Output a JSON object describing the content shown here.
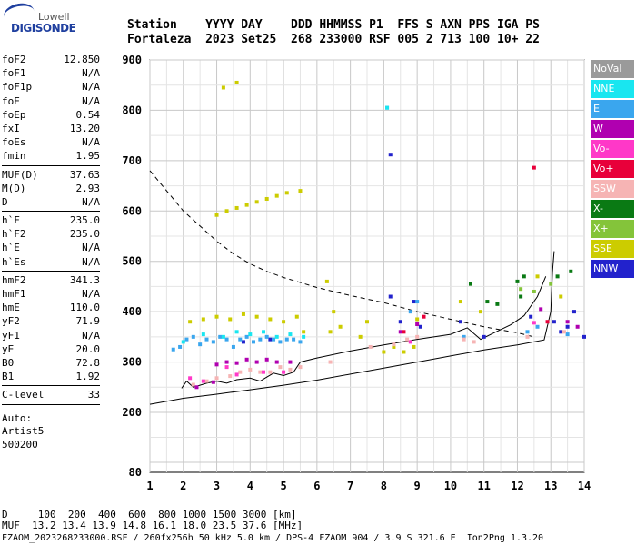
{
  "logo": {
    "brand": "Lowell",
    "product": "DIGISONDE"
  },
  "header": {
    "line1": "Station    YYYY DAY    DDD HHMMSS P1  FFS S AXN PPS IGA PS",
    "line2": "Fortaleza  2023 Set25  268 233000 RSF 005 2 713 100 10+ 22"
  },
  "params": [
    {
      "k": "foF2",
      "v": "12.850"
    },
    {
      "k": "foF1",
      "v": "N/A"
    },
    {
      "k": "foF1p",
      "v": "N/A"
    },
    {
      "k": "foE",
      "v": "N/A"
    },
    {
      "k": "foEp",
      "v": "0.54"
    },
    {
      "k": "fxI",
      "v": "13.20"
    },
    {
      "k": "foEs",
      "v": "N/A"
    },
    {
      "k": "fmin",
      "v": "1.95"
    },
    {
      "k": "MUF(D)",
      "v": "37.63"
    },
    {
      "k": "M(D)",
      "v": "2.93"
    },
    {
      "k": "D",
      "v": "N/A"
    },
    {
      "k": "h`F",
      "v": "235.0"
    },
    {
      "k": "h`F2",
      "v": "235.0"
    },
    {
      "k": "h`E",
      "v": "N/A"
    },
    {
      "k": "h`Es",
      "v": "N/A"
    },
    {
      "k": "hmF2",
      "v": "341.3"
    },
    {
      "k": "hmF1",
      "v": "N/A"
    },
    {
      "k": "hmE",
      "v": "110.0"
    },
    {
      "k": "yF2",
      "v": "71.9"
    },
    {
      "k": "yF1",
      "v": "N/A"
    },
    {
      "k": "yE",
      "v": "20.0"
    },
    {
      "k": "B0",
      "v": "72.8"
    },
    {
      "k": "B1",
      "v": "1.92"
    },
    {
      "k": "C-level",
      "v": "33"
    }
  ],
  "auto": {
    "line1": "Auto:",
    "line2": "Artist5",
    "line3": "500200"
  },
  "legend": [
    {
      "label": "NoVal",
      "color": "#9a9a9a"
    },
    {
      "label": "NNE",
      "color": "#19e6f0"
    },
    {
      "label": "E",
      "color": "#3aa6ee"
    },
    {
      "label": "W",
      "color": "#b000b0"
    },
    {
      "label": "Vo-",
      "color": "#ff38c8"
    },
    {
      "label": "Vo+",
      "color": "#e8003a"
    },
    {
      "label": "SSW",
      "color": "#f6b4b4"
    },
    {
      "label": "X-",
      "color": "#0a7a14"
    },
    {
      "label": "X+",
      "color": "#84c43a"
    },
    {
      "label": "SSE",
      "color": "#cccc00"
    },
    {
      "label": "NNW",
      "color": "#2222cc"
    }
  ],
  "bottom": {
    "line1": "D     100  200  400  600  800 1000 1500 3000 [km]",
    "line2": "MUF  13.2 13.4 13.9 14.8 16.1 18.0 23.5 37.6 [MHz]",
    "line3": "FZAOM_2023268233000.RSF / 260fx256h 50 kHz 5.0 km / DPS-4 FZAOM 904 / 3.9 S 321.6 E  Ion2Png 1.3.20"
  },
  "chart_data": {
    "type": "scatter",
    "title": "",
    "xlabel": "",
    "ylabel": "",
    "xlim": [
      1,
      14
    ],
    "ylim": [
      80,
      900
    ],
    "x_ticks": [
      1,
      2,
      3,
      4,
      5,
      6,
      7,
      8,
      9,
      10,
      11,
      12,
      13,
      14
    ],
    "y_ticks": [
      80,
      200,
      300,
      400,
      500,
      600,
      700,
      800,
      900
    ],
    "grid": true,
    "legend_position": "right",
    "series": [
      {
        "name": "NNW",
        "points": [
          [
            8.2,
            430
          ],
          [
            8.5,
            380
          ],
          [
            8.9,
            420
          ],
          [
            9.1,
            370
          ],
          [
            10.3,
            380
          ],
          [
            11.0,
            350
          ],
          [
            12.4,
            390
          ],
          [
            13.1,
            380
          ],
          [
            13.3,
            360
          ],
          [
            13.5,
            370
          ],
          [
            13.7,
            400
          ],
          [
            14.0,
            350
          ],
          [
            8.2,
            712
          ],
          [
            3.8,
            340
          ],
          [
            4.6,
            345
          ]
        ]
      },
      {
        "name": "E",
        "points": [
          [
            1.7,
            325
          ],
          [
            1.9,
            330
          ],
          [
            2.1,
            345
          ],
          [
            2.3,
            350
          ],
          [
            2.5,
            335
          ],
          [
            2.7,
            345
          ],
          [
            2.9,
            340
          ],
          [
            3.1,
            350
          ],
          [
            3.3,
            345
          ],
          [
            3.5,
            330
          ],
          [
            3.7,
            345
          ],
          [
            3.9,
            350
          ],
          [
            4.1,
            340
          ],
          [
            4.3,
            345
          ],
          [
            4.5,
            350
          ],
          [
            4.7,
            345
          ],
          [
            4.9,
            340
          ],
          [
            5.1,
            345
          ],
          [
            5.3,
            345
          ],
          [
            5.5,
            340
          ],
          [
            8.8,
            400
          ],
          [
            9.0,
            420
          ],
          [
            10.4,
            350
          ],
          [
            12.3,
            360
          ],
          [
            12.6,
            370
          ],
          [
            13.5,
            355
          ],
          [
            8.1,
            805
          ]
        ]
      },
      {
        "name": "NNE",
        "points": [
          [
            2.0,
            340
          ],
          [
            2.6,
            355
          ],
          [
            3.2,
            350
          ],
          [
            3.6,
            360
          ],
          [
            4.0,
            355
          ],
          [
            4.4,
            360
          ],
          [
            4.8,
            350
          ],
          [
            5.2,
            355
          ],
          [
            5.6,
            350
          ],
          [
            8.1,
            805
          ]
        ]
      },
      {
        "name": "SSE",
        "points": [
          [
            2.2,
            380
          ],
          [
            2.6,
            385
          ],
          [
            3.0,
            390
          ],
          [
            3.4,
            385
          ],
          [
            3.8,
            395
          ],
          [
            4.2,
            390
          ],
          [
            4.6,
            385
          ],
          [
            5.0,
            380
          ],
          [
            5.4,
            390
          ],
          [
            5.6,
            360
          ],
          [
            6.4,
            360
          ],
          [
            6.5,
            400
          ],
          [
            6.7,
            370
          ],
          [
            7.3,
            350
          ],
          [
            7.5,
            380
          ],
          [
            8.0,
            320
          ],
          [
            8.3,
            330
          ],
          [
            8.6,
            320
          ],
          [
            8.9,
            330
          ],
          [
            9.0,
            385
          ],
          [
            3.0,
            592
          ],
          [
            3.3,
            600
          ],
          [
            3.6,
            606
          ],
          [
            3.9,
            612
          ],
          [
            4.2,
            618
          ],
          [
            4.5,
            624
          ],
          [
            4.8,
            630
          ],
          [
            5.1,
            636
          ],
          [
            5.5,
            640
          ],
          [
            3.2,
            845
          ],
          [
            3.6,
            855
          ],
          [
            12.6,
            470
          ],
          [
            13.3,
            430
          ],
          [
            6.3,
            460
          ],
          [
            10.3,
            420
          ],
          [
            10.9,
            400
          ]
        ]
      },
      {
        "name": "SSW",
        "points": [
          [
            2.3,
            255
          ],
          [
            2.7,
            262
          ],
          [
            3.0,
            268
          ],
          [
            3.4,
            272
          ],
          [
            3.7,
            280
          ],
          [
            4.0,
            285
          ],
          [
            4.3,
            280
          ],
          [
            4.6,
            280
          ],
          [
            4.9,
            290
          ],
          [
            5.2,
            285
          ],
          [
            5.5,
            290
          ],
          [
            6.4,
            300
          ],
          [
            7.6,
            330
          ],
          [
            8.3,
            335
          ],
          [
            8.7,
            345
          ],
          [
            9.0,
            350
          ],
          [
            10.4,
            345
          ],
          [
            10.7,
            340
          ],
          [
            12.3,
            350
          ],
          [
            13.4,
            360
          ]
        ]
      },
      {
        "name": "W",
        "points": [
          [
            3.0,
            295
          ],
          [
            3.3,
            300
          ],
          [
            3.6,
            298
          ],
          [
            3.9,
            305
          ],
          [
            4.2,
            300
          ],
          [
            4.5,
            305
          ],
          [
            4.8,
            300
          ],
          [
            5.2,
            300
          ],
          [
            2.4,
            250
          ],
          [
            2.9,
            260
          ],
          [
            8.5,
            360
          ],
          [
            9.0,
            375
          ],
          [
            12.7,
            405
          ],
          [
            13.5,
            380
          ],
          [
            13.8,
            370
          ]
        ]
      },
      {
        "name": "Vo-",
        "points": [
          [
            2.2,
            268
          ],
          [
            2.6,
            262
          ],
          [
            3.3,
            290
          ],
          [
            3.6,
            275
          ],
          [
            4.4,
            280
          ],
          [
            5.0,
            280
          ],
          [
            8.8,
            340
          ],
          [
            12.5,
            378
          ]
        ]
      },
      {
        "name": "Vo+",
        "points": [
          [
            12.5,
            686
          ],
          [
            8.6,
            360
          ],
          [
            9.2,
            390
          ],
          [
            12.9,
            380
          ]
        ]
      },
      {
        "name": "X-",
        "points": [
          [
            12.0,
            460
          ],
          [
            12.2,
            470
          ],
          [
            13.2,
            470
          ],
          [
            13.6,
            480
          ],
          [
            11.1,
            420
          ],
          [
            11.4,
            415
          ],
          [
            10.6,
            455
          ],
          [
            12.1,
            430
          ]
        ]
      },
      {
        "name": "X+",
        "points": [
          [
            12.5,
            440
          ],
          [
            13.0,
            455
          ],
          [
            12.1,
            445
          ]
        ]
      }
    ],
    "lines": [
      {
        "style": "dashed",
        "points": [
          [
            1,
            680
          ],
          [
            1.5,
            640
          ],
          [
            2,
            600
          ],
          [
            2.5,
            570
          ],
          [
            3,
            540
          ],
          [
            3.5,
            515
          ],
          [
            4,
            495
          ],
          [
            4.5,
            480
          ],
          [
            5,
            468
          ],
          [
            6,
            448
          ],
          [
            7,
            432
          ],
          [
            8,
            418
          ],
          [
            9,
            400
          ],
          [
            10,
            385
          ],
          [
            11,
            370
          ],
          [
            12,
            358
          ],
          [
            12.5,
            350
          ]
        ]
      },
      {
        "style": "solid",
        "points": [
          [
            1,
            216
          ],
          [
            2,
            228
          ],
          [
            3,
            236
          ],
          [
            4,
            245
          ],
          [
            5,
            254
          ],
          [
            6,
            264
          ],
          [
            7,
            276
          ],
          [
            8,
            288
          ],
          [
            9,
            300
          ],
          [
            10,
            312
          ],
          [
            11,
            324
          ],
          [
            12,
            334
          ],
          [
            12.8,
            344
          ],
          [
            13.0,
            400
          ],
          [
            13.05,
            480
          ],
          [
            13.1,
            520
          ]
        ]
      },
      {
        "style": "solid",
        "points": [
          [
            1.95,
            248
          ],
          [
            2.1,
            262
          ],
          [
            2.3,
            250
          ],
          [
            2.7,
            258
          ],
          [
            3.0,
            262
          ],
          [
            3.3,
            258
          ],
          [
            3.6,
            265
          ],
          [
            4.0,
            268
          ],
          [
            4.3,
            262
          ],
          [
            4.7,
            278
          ],
          [
            5.0,
            273
          ],
          [
            5.3,
            280
          ],
          [
            5.5,
            300
          ],
          [
            6.0,
            308
          ],
          [
            7,
            322
          ],
          [
            8,
            334
          ],
          [
            9,
            345
          ],
          [
            10,
            355
          ],
          [
            10.5,
            368
          ],
          [
            10.9,
            345
          ],
          [
            11.3,
            358
          ],
          [
            11.8,
            374
          ],
          [
            12.2,
            392
          ],
          [
            12.6,
            430
          ],
          [
            12.85,
            470
          ]
        ]
      }
    ]
  }
}
